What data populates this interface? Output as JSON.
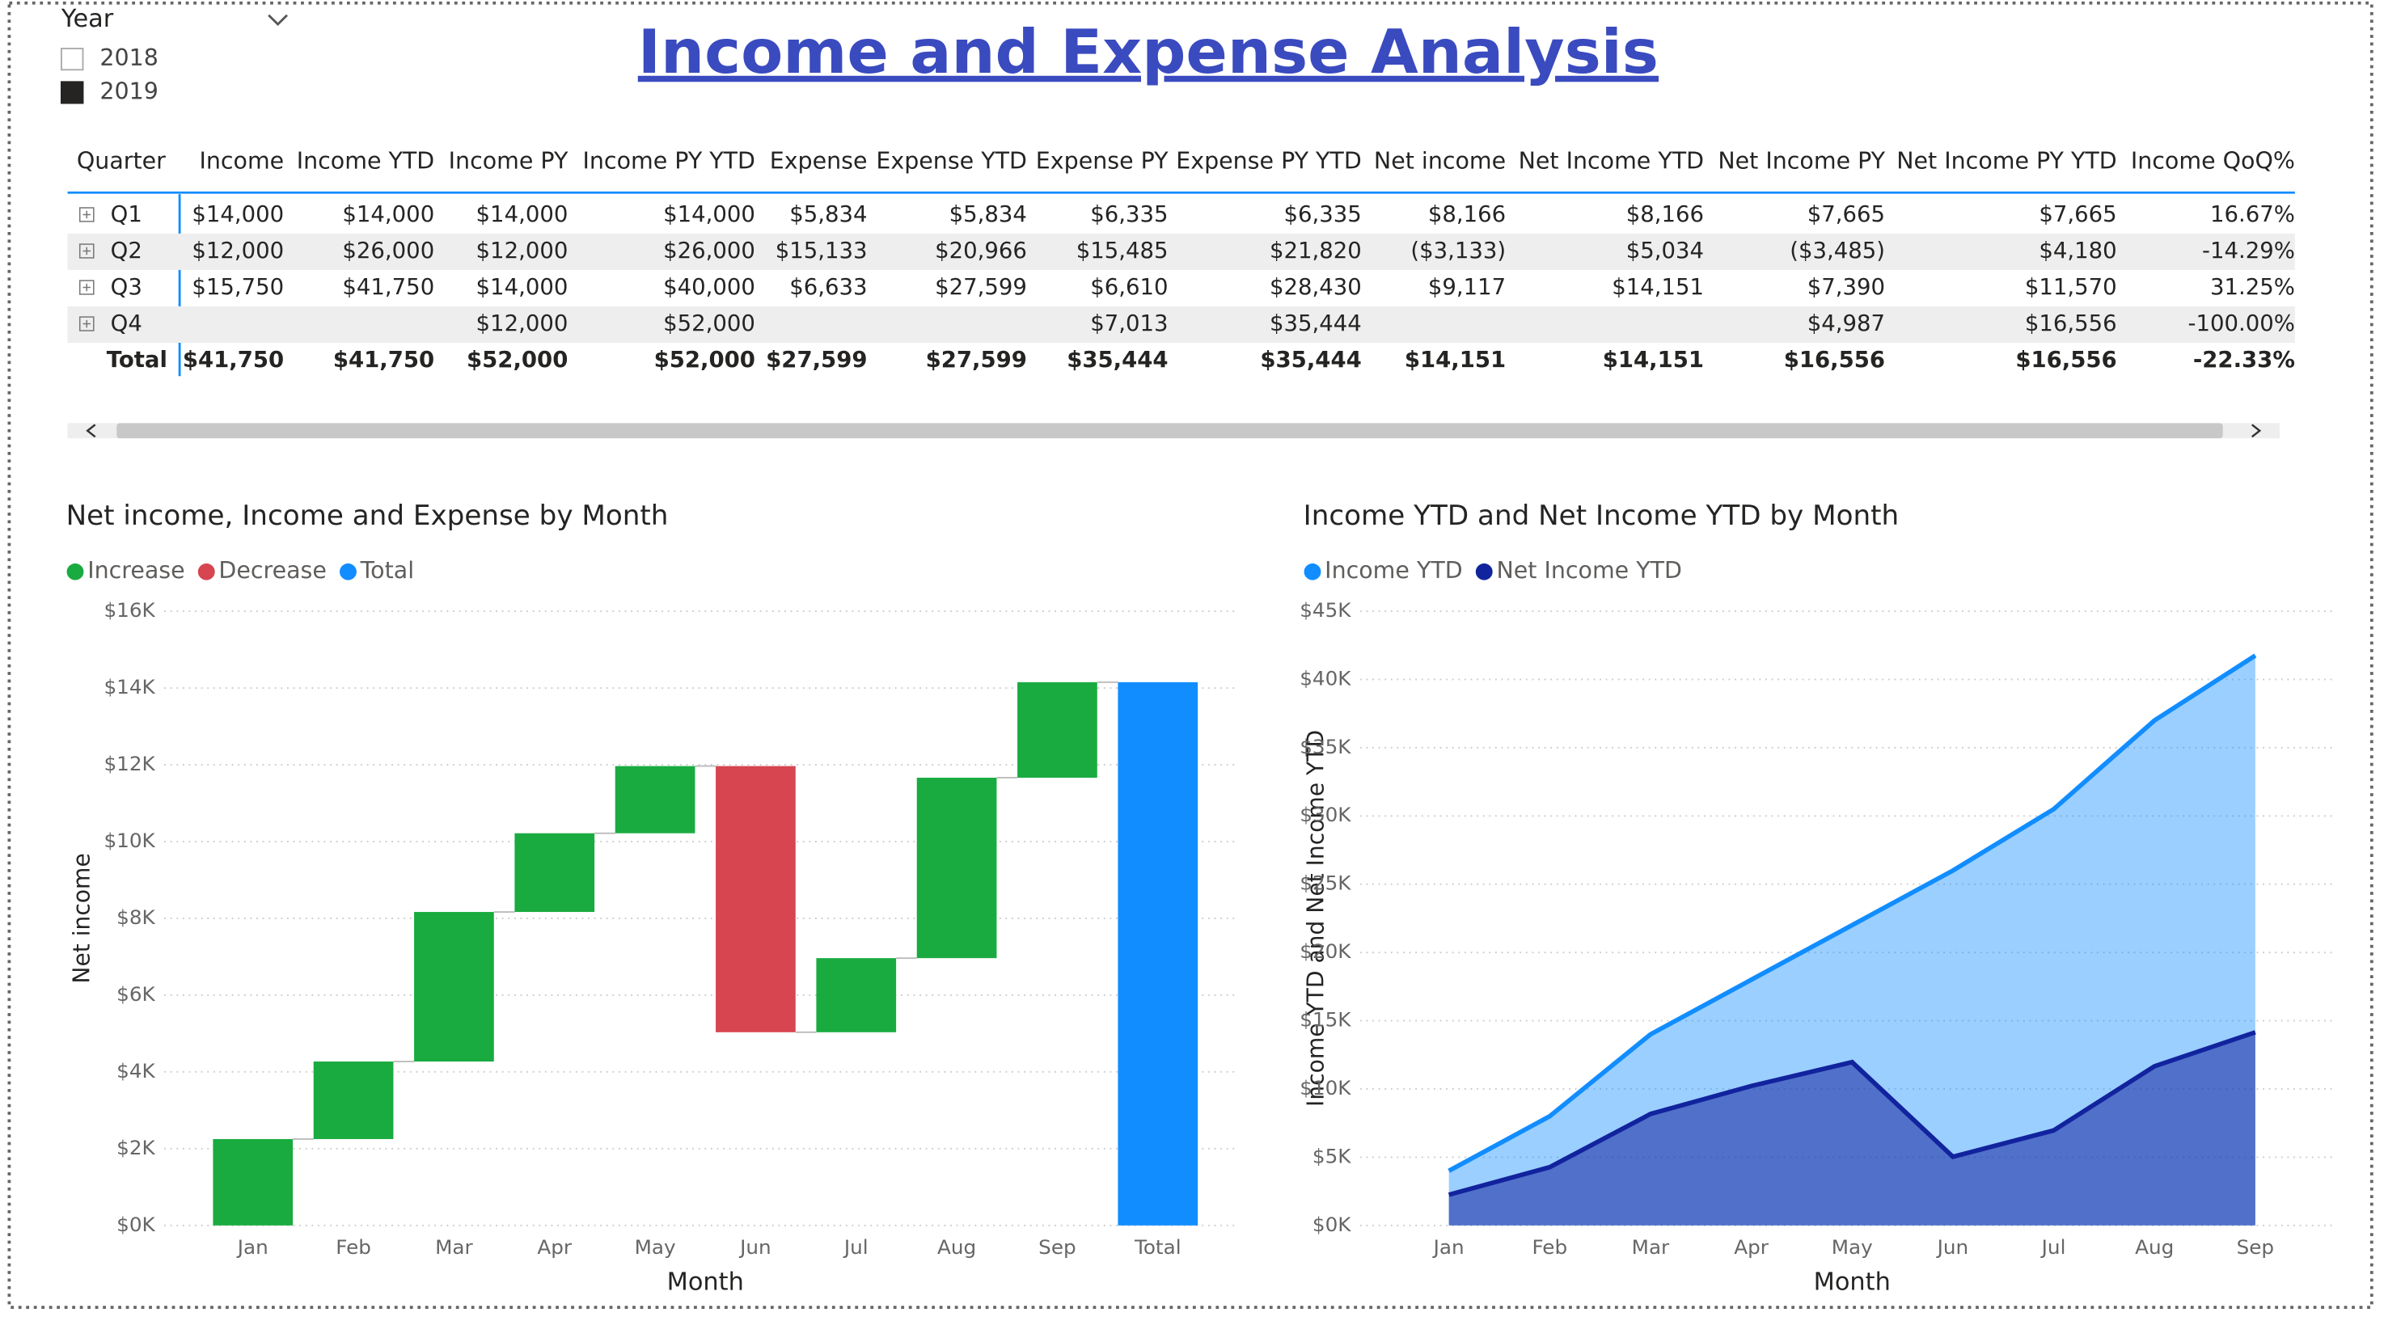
{
  "slicer": {
    "title": "Year",
    "options": [
      {
        "label": "2018",
        "checked": false
      },
      {
        "label": "2019",
        "checked": true
      }
    ]
  },
  "title": "Income and Expense Analysis",
  "table": {
    "columns": [
      "Quarter",
      "Income",
      "Income YTD",
      "Income PY",
      "Income PY YTD",
      "Expense",
      "Expense YTD",
      "Expense PY",
      "Expense PY YTD",
      "Net income",
      "Net Income YTD",
      "Net Income PY",
      "Net Income PY YTD",
      "Income QoQ%"
    ],
    "rows": [
      [
        "Q1",
        "$14,000",
        "$14,000",
        "$14,000",
        "$14,000",
        "$5,834",
        "$5,834",
        "$6,335",
        "$6,335",
        "$8,166",
        "$8,166",
        "$7,665",
        "$7,665",
        "16.67%"
      ],
      [
        "Q2",
        "$12,000",
        "$26,000",
        "$12,000",
        "$26,000",
        "$15,133",
        "$20,966",
        "$15,485",
        "$21,820",
        "($3,133)",
        "$5,034",
        "($3,485)",
        "$4,180",
        "-14.29%"
      ],
      [
        "Q3",
        "$15,750",
        "$41,750",
        "$14,000",
        "$40,000",
        "$6,633",
        "$27,599",
        "$6,610",
        "$28,430",
        "$9,117",
        "$14,151",
        "$7,390",
        "$11,570",
        "31.25%"
      ],
      [
        "Q4",
        null,
        null,
        "$12,000",
        "$52,000",
        null,
        null,
        "$7,013",
        "$35,444",
        null,
        null,
        "$4,987",
        "$16,556",
        "-100.00%"
      ]
    ],
    "total": [
      "Total",
      "$41,750",
      "$41,750",
      "$52,000",
      "$52,000",
      "$27,599",
      "$27,599",
      "$35,444",
      "$35,444",
      "$14,151",
      "$14,151",
      "$16,556",
      "$16,556",
      "-22.33%"
    ]
  },
  "chart_data": [
    {
      "type": "waterfall",
      "title": "Net income, Income and Expense by Month",
      "x_label": "Month",
      "y_label": "Net income",
      "categories": [
        "Jan",
        "Feb",
        "Mar",
        "Apr",
        "May",
        "Jun",
        "Jul",
        "Aug",
        "Sep",
        "Total"
      ],
      "values": [
        2250,
        2020,
        3896,
        2050,
        1750,
        -6933,
        1930,
        4700,
        2488,
        14151
      ],
      "legend_items": [
        {
          "name": "Increase",
          "color": "#1aab40"
        },
        {
          "name": "Decrease",
          "color": "#d64550"
        },
        {
          "name": "Total",
          "color": "#118dff"
        }
      ],
      "ylim": [
        0,
        16000
      ],
      "yticks": [
        {
          "value": 0,
          "label": "$0K"
        },
        {
          "value": 2000,
          "label": "$2K"
        },
        {
          "value": 4000,
          "label": "$4K"
        },
        {
          "value": 6000,
          "label": "$6K"
        },
        {
          "value": 8000,
          "label": "$8K"
        },
        {
          "value": 10000,
          "label": "$10K"
        },
        {
          "value": 12000,
          "label": "$12K"
        },
        {
          "value": 14000,
          "label": "$14K"
        },
        {
          "value": 16000,
          "label": "$16K"
        }
      ],
      "grid": true
    },
    {
      "type": "area",
      "title": "Income YTD and Net Income YTD by Month",
      "x_label": "Month",
      "y_label": "Income YTD and Net Income YTD",
      "categories": [
        "Jan",
        "Feb",
        "Mar",
        "Apr",
        "May",
        "Jun",
        "Jul",
        "Aug",
        "Sep"
      ],
      "series": [
        {
          "name": "Income YTD",
          "color": "#118dff",
          "values": [
            4000,
            8000,
            14000,
            18000,
            22000,
            26000,
            30500,
            37000,
            41750
          ]
        },
        {
          "name": "Net Income YTD",
          "color": "#12239e",
          "values": [
            2250,
            4270,
            8166,
            10216,
            11966,
            5033,
            6963,
            11663,
            14151
          ]
        }
      ],
      "ylim": [
        0,
        45000
      ],
      "yticks": [
        {
          "value": 0,
          "label": "$0K"
        },
        {
          "value": 5000,
          "label": "$5K"
        },
        {
          "value": 10000,
          "label": "$10K"
        },
        {
          "value": 15000,
          "label": "$15K"
        },
        {
          "value": 20000,
          "label": "$20K"
        },
        {
          "value": 25000,
          "label": "$25K"
        },
        {
          "value": 30000,
          "label": "$30K"
        },
        {
          "value": 35000,
          "label": "$35K"
        },
        {
          "value": 40000,
          "label": "$40K"
        },
        {
          "value": 45000,
          "label": "$45K"
        }
      ],
      "grid": true
    }
  ]
}
